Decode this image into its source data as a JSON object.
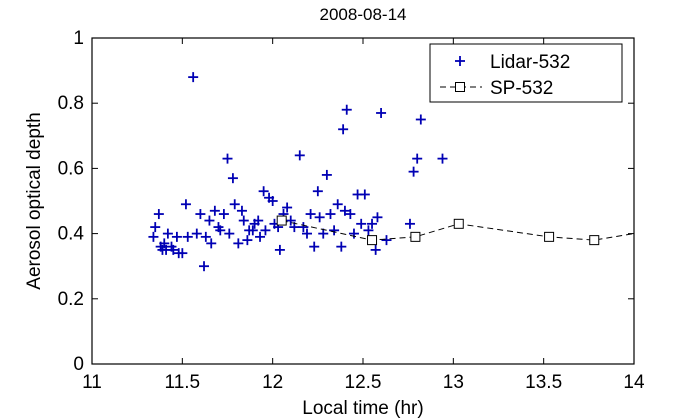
{
  "chart_data": {
    "type": "scatter",
    "title": "2008-08-14",
    "xlabel": "Local time (hr)",
    "ylabel": "Aerosol optical depth",
    "xlim": [
      11,
      14
    ],
    "ylim": [
      0,
      1
    ],
    "xticks": [
      11,
      11.5,
      12,
      12.5,
      13,
      13.5,
      14
    ],
    "xtick_labels": [
      "11",
      "11.5",
      "12",
      "12.5",
      "13",
      "13.5",
      "14"
    ],
    "yticks": [
      0,
      0.2,
      0.4,
      0.6,
      0.8,
      1
    ],
    "ytick_labels": [
      "0",
      "0.2",
      "0.4",
      "0.6",
      "0.8",
      "1"
    ],
    "grid": false,
    "legend_position": "top-right",
    "series": [
      {
        "name": "Lidar-532",
        "marker": "plus",
        "color": "#0000b4",
        "line": false,
        "points": [
          [
            11.34,
            0.39
          ],
          [
            11.35,
            0.42
          ],
          [
            11.37,
            0.46
          ],
          [
            11.38,
            0.36
          ],
          [
            11.39,
            0.35
          ],
          [
            11.4,
            0.37
          ],
          [
            11.41,
            0.35
          ],
          [
            11.42,
            0.4
          ],
          [
            11.44,
            0.36
          ],
          [
            11.45,
            0.35
          ],
          [
            11.47,
            0.39
          ],
          [
            11.48,
            0.34
          ],
          [
            11.5,
            0.34
          ],
          [
            11.52,
            0.49
          ],
          [
            11.53,
            0.39
          ],
          [
            11.56,
            0.88
          ],
          [
            11.58,
            0.4
          ],
          [
            11.6,
            0.46
          ],
          [
            11.62,
            0.3
          ],
          [
            11.63,
            0.39
          ],
          [
            11.65,
            0.44
          ],
          [
            11.66,
            0.37
          ],
          [
            11.68,
            0.47
          ],
          [
            11.7,
            0.42
          ],
          [
            11.71,
            0.41
          ],
          [
            11.73,
            0.46
          ],
          [
            11.75,
            0.63
          ],
          [
            11.76,
            0.4
          ],
          [
            11.78,
            0.57
          ],
          [
            11.79,
            0.49
          ],
          [
            11.81,
            0.37
          ],
          [
            11.83,
            0.47
          ],
          [
            11.84,
            0.44
          ],
          [
            11.86,
            0.38
          ],
          [
            11.87,
            0.41
          ],
          [
            11.89,
            0.41
          ],
          [
            11.9,
            0.43
          ],
          [
            11.92,
            0.44
          ],
          [
            11.93,
            0.39
          ],
          [
            11.95,
            0.53
          ],
          [
            11.96,
            0.41
          ],
          [
            11.98,
            0.51
          ],
          [
            12.0,
            0.5
          ],
          [
            12.01,
            0.43
          ],
          [
            12.03,
            0.42
          ],
          [
            12.04,
            0.35
          ],
          [
            12.06,
            0.46
          ],
          [
            12.08,
            0.48
          ],
          [
            12.1,
            0.44
          ],
          [
            12.12,
            0.42
          ],
          [
            12.15,
            0.64
          ],
          [
            12.17,
            0.42
          ],
          [
            12.19,
            0.4
          ],
          [
            12.21,
            0.46
          ],
          [
            12.23,
            0.36
          ],
          [
            12.25,
            0.53
          ],
          [
            12.26,
            0.45
          ],
          [
            12.28,
            0.4
          ],
          [
            12.3,
            0.58
          ],
          [
            12.32,
            0.46
          ],
          [
            12.34,
            0.41
          ],
          [
            12.36,
            0.49
          ],
          [
            12.38,
            0.36
          ],
          [
            12.39,
            0.72
          ],
          [
            12.4,
            0.47
          ],
          [
            12.41,
            0.78
          ],
          [
            12.43,
            0.46
          ],
          [
            12.45,
            0.4
          ],
          [
            12.47,
            0.52
          ],
          [
            12.49,
            0.43
          ],
          [
            12.51,
            0.52
          ],
          [
            12.53,
            0.41
          ],
          [
            12.55,
            0.43
          ],
          [
            12.57,
            0.35
          ],
          [
            12.58,
            0.45
          ],
          [
            12.6,
            0.77
          ],
          [
            12.63,
            0.38
          ],
          [
            12.76,
            0.43
          ],
          [
            12.78,
            0.59
          ],
          [
            12.8,
            0.63
          ],
          [
            12.82,
            0.75
          ],
          [
            12.94,
            0.63
          ]
        ]
      },
      {
        "name": "SP-532",
        "marker": "square",
        "color": "#000000",
        "line": true,
        "dashed": true,
        "points": [
          [
            12.05,
            0.44
          ],
          [
            12.55,
            0.38
          ],
          [
            12.79,
            0.39
          ],
          [
            13.03,
            0.43
          ],
          [
            13.53,
            0.39
          ],
          [
            13.78,
            0.38
          ],
          [
            14.0,
            0.4
          ]
        ]
      }
    ]
  }
}
